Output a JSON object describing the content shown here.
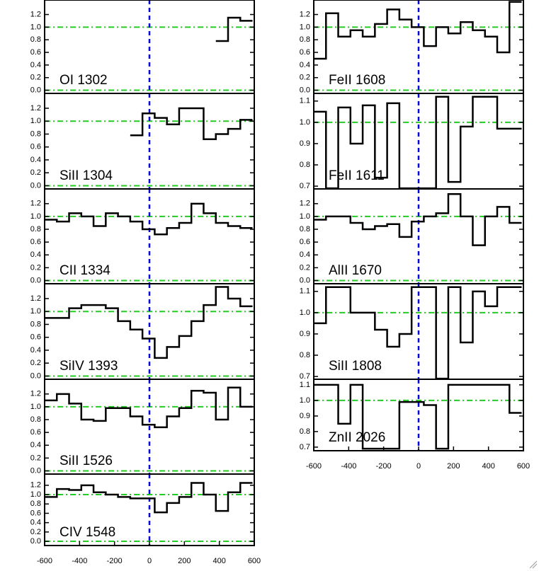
{
  "chart_data": [
    {
      "type": "step",
      "label": "OI 1302",
      "xlim": [
        -600,
        600
      ],
      "ylim": [
        -0.05,
        1.43
      ],
      "yticks": [
        {
          "value": 0,
          "label": "0.0"
        },
        0.2,
        0.4,
        0.6,
        0.8,
        {
          "value": 1,
          "label": "1.0"
        },
        1.2
      ],
      "x": [
        -565,
        -495,
        -425,
        -355,
        -285,
        -215,
        -145,
        -75,
        -5,
        65,
        135,
        205,
        275,
        345,
        415,
        485,
        555
      ],
      "values": [
        null,
        null,
        null,
        null,
        null,
        null,
        null,
        null,
        null,
        null,
        null,
        null,
        null,
        null,
        0.78,
        1.15,
        1.1
      ]
    },
    {
      "type": "step",
      "label": "SiII 1304",
      "xlim": [
        -600,
        600
      ],
      "ylim": [
        -0.05,
        1.43
      ],
      "yticks": [
        {
          "value": 0,
          "label": "0.0"
        },
        0.2,
        0.4,
        0.6,
        0.8,
        {
          "value": 1,
          "label": "1.0"
        },
        1.2
      ],
      "x": [
        -565,
        -495,
        -425,
        -355,
        -285,
        -215,
        -145,
        -75,
        -5,
        65,
        135,
        205,
        275,
        345,
        415,
        485,
        555
      ],
      "values": [
        null,
        null,
        null,
        null,
        null,
        null,
        null,
        0.78,
        1.12,
        1.05,
        0.95,
        1.2,
        1.2,
        0.72,
        0.8,
        0.88,
        1.02
      ]
    },
    {
      "type": "step",
      "label": "CII 1334",
      "xlim": [
        -600,
        600
      ],
      "ylim": [
        -0.05,
        1.43
      ],
      "yticks": [
        {
          "value": 0,
          "label": "0.0"
        },
        0.2,
        0.4,
        0.6,
        0.8,
        {
          "value": 1,
          "label": "1.0"
        },
        1.2
      ],
      "x": [
        -565,
        -495,
        -425,
        -355,
        -285,
        -215,
        -145,
        -75,
        -5,
        65,
        135,
        205,
        275,
        345,
        415,
        485,
        555
      ],
      "values": [
        0.95,
        0.92,
        1.05,
        1.0,
        0.85,
        1.05,
        1.0,
        0.92,
        0.8,
        0.72,
        0.82,
        0.9,
        1.2,
        1.05,
        0.9,
        0.85,
        0.82
      ]
    },
    {
      "type": "step",
      "label": "SiIV 1393",
      "xlim": [
        -600,
        600
      ],
      "ylim": [
        -0.05,
        1.43
      ],
      "yticks": [
        {
          "value": 0,
          "label": "0.0"
        },
        0.2,
        0.4,
        0.6,
        0.8,
        {
          "value": 1,
          "label": "1.0"
        },
        1.2
      ],
      "x": [
        -565,
        -495,
        -425,
        -355,
        -285,
        -215,
        -145,
        -75,
        -5,
        65,
        135,
        205,
        275,
        345,
        415,
        485,
        555
      ],
      "values": [
        0.9,
        0.9,
        1.05,
        1.1,
        1.1,
        1.05,
        0.85,
        0.72,
        0.58,
        0.28,
        0.45,
        0.62,
        0.85,
        1.1,
        1.38,
        1.2,
        1.08
      ]
    },
    {
      "type": "step",
      "label": "SiII 1526",
      "xlim": [
        -600,
        600
      ],
      "ylim": [
        -0.05,
        1.43
      ],
      "yticks": [
        {
          "value": 0,
          "label": "0.0"
        },
        0.2,
        0.4,
        0.6,
        0.8,
        {
          "value": 1,
          "label": "1.0"
        },
        1.2
      ],
      "x": [
        -565,
        -495,
        -425,
        -355,
        -285,
        -215,
        -145,
        -75,
        -5,
        65,
        135,
        205,
        275,
        345,
        415,
        485,
        555
      ],
      "values": [
        1.1,
        1.2,
        1.05,
        0.8,
        0.78,
        0.98,
        0.98,
        0.85,
        0.72,
        0.68,
        0.85,
        0.98,
        1.25,
        1.22,
        0.8,
        1.3,
        1.0
      ]
    },
    {
      "type": "step",
      "label": "CIV 1548",
      "xlim": [
        -600,
        600
      ],
      "ylim": [
        -0.09,
        1.44
      ],
      "yticks": [
        {
          "value": 0,
          "label": "0.0"
        },
        0.2,
        0.4,
        0.6,
        0.8,
        {
          "value": 1,
          "label": "1.0"
        },
        1.2
      ],
      "xticks": [
        -600,
        -400,
        -200,
        0,
        200,
        400,
        600
      ],
      "x": [
        -565,
        -495,
        -425,
        -355,
        -285,
        -215,
        -145,
        -75,
        -5,
        65,
        135,
        205,
        275,
        345,
        415,
        485,
        555
      ],
      "values": [
        0.95,
        1.12,
        1.1,
        1.2,
        1.05,
        1.0,
        0.95,
        0.92,
        0.92,
        0.62,
        0.82,
        0.95,
        1.25,
        1.0,
        0.65,
        1.05,
        1.25
      ]
    },
    {
      "type": "step",
      "label": "FeII 1608",
      "xlim": [
        -600,
        600
      ],
      "ylim": [
        -0.05,
        1.43
      ],
      "yticks": [
        {
          "value": 0,
          "label": "0.0"
        },
        0.2,
        0.4,
        0.6,
        0.8,
        {
          "value": 1,
          "label": "1.0"
        },
        1.2
      ],
      "x": [
        -565,
        -495,
        -425,
        -355,
        -285,
        -215,
        -145,
        -75,
        -5,
        65,
        135,
        205,
        275,
        345,
        415,
        485,
        555
      ],
      "values": [
        0.5,
        1.22,
        0.85,
        0.95,
        0.85,
        1.05,
        1.28,
        1.12,
        1.0,
        0.7,
        1.0,
        0.9,
        1.08,
        0.95,
        0.85,
        0.6,
        1.4
      ]
    },
    {
      "type": "step",
      "label": "FeII 1611",
      "xlim": [
        -600,
        600
      ],
      "ylim": [
        0.687,
        1.136
      ],
      "yticks": [
        0.7,
        0.8,
        0.9,
        {
          "value": 1,
          "label": "1.0"
        },
        1.1
      ],
      "x": [
        -565,
        -495,
        -425,
        -355,
        -285,
        -215,
        -145,
        -75,
        -5,
        65,
        135,
        205,
        275,
        345,
        415,
        485,
        555
      ],
      "values": [
        1.05,
        0.69,
        1.07,
        0.9,
        1.08,
        0.74,
        1.09,
        0.69,
        0.69,
        0.69,
        1.12,
        0.72,
        0.98,
        1.12,
        1.12,
        0.97,
        0.97
      ]
    },
    {
      "type": "step",
      "label": "AlII 1670",
      "xlim": [
        -600,
        600
      ],
      "ylim": [
        -0.05,
        1.43
      ],
      "yticks": [
        {
          "value": 0,
          "label": "0.0"
        },
        0.2,
        0.4,
        0.6,
        0.8,
        {
          "value": 1,
          "label": "1.0"
        },
        1.2
      ],
      "x": [
        -565,
        -495,
        -425,
        -355,
        -285,
        -215,
        -145,
        -75,
        -5,
        65,
        135,
        205,
        275,
        345,
        415,
        485,
        555
      ],
      "values": [
        0.95,
        1.0,
        1.0,
        0.9,
        0.8,
        0.85,
        0.88,
        0.68,
        0.92,
        1.0,
        1.05,
        1.35,
        1.0,
        0.55,
        1.0,
        1.15,
        0.9
      ]
    },
    {
      "type": "step",
      "label": "SiII 1808",
      "xlim": [
        -600,
        600
      ],
      "ylim": [
        0.687,
        1.136
      ],
      "yticks": [
        0.7,
        0.8,
        0.9,
        {
          "value": 1,
          "label": "1.0"
        },
        1.1
      ],
      "x": [
        -565,
        -495,
        -425,
        -355,
        -285,
        -215,
        -145,
        -75,
        -5,
        65,
        135,
        205,
        275,
        345,
        415,
        485,
        555
      ],
      "values": [
        0.95,
        1.12,
        1.12,
        1.0,
        1.0,
        0.92,
        0.84,
        0.9,
        1.12,
        1.12,
        0.69,
        1.12,
        0.86,
        1.1,
        1.03,
        1.12,
        1.12
      ]
    },
    {
      "type": "step",
      "label": "ZnII 2026",
      "xlim": [
        -600,
        600
      ],
      "ylim": [
        0.677,
        1.136
      ],
      "yticks": [
        0.7,
        0.8,
        0.9,
        {
          "value": 1,
          "label": "1.0"
        },
        1.1
      ],
      "xticks": [
        -600,
        -400,
        -200,
        0,
        200,
        400,
        600
      ],
      "x": [
        -565,
        -495,
        -425,
        -355,
        -285,
        -215,
        -145,
        -75,
        -5,
        65,
        135,
        205,
        275,
        345,
        415,
        485,
        555
      ],
      "values": [
        1.1,
        1.1,
        0.85,
        1.1,
        0.69,
        0.69,
        0.69,
        0.99,
        0.99,
        0.97,
        0.69,
        1.1,
        1.1,
        1.1,
        1.1,
        1.1,
        0.92
      ]
    }
  ],
  "reference_y": [
    0,
    1
  ],
  "reference_x": 0,
  "line_color": "#000000",
  "reference_y_color": "#22cc22",
  "reference_x_color": "#0000dd"
}
